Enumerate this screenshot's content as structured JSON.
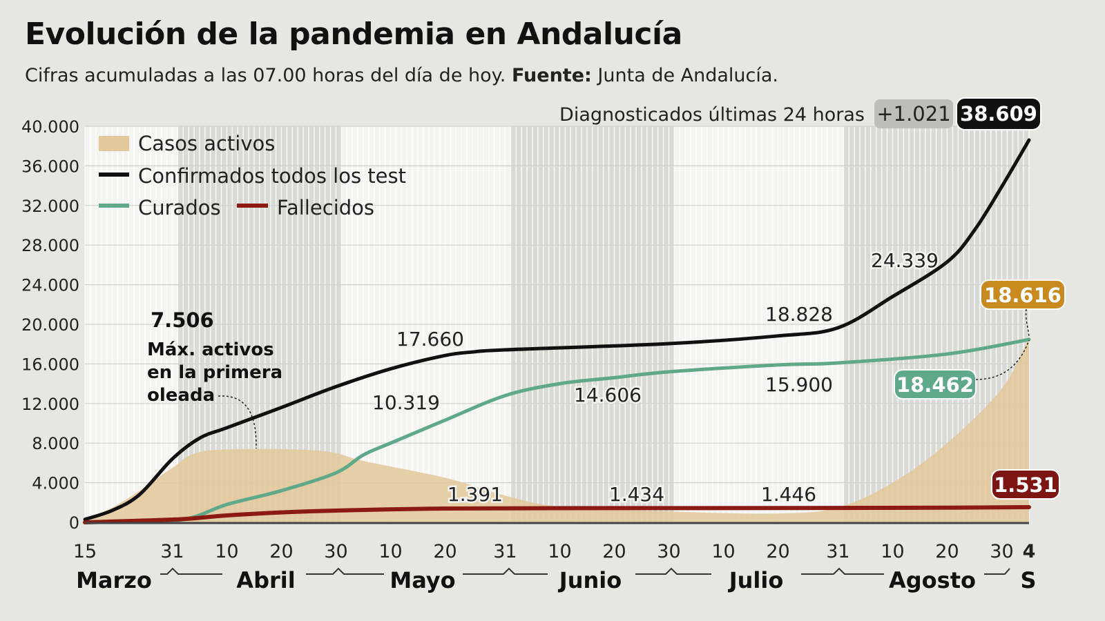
{
  "chart_data": {
    "type": "line",
    "title": "Evolución de la pandemia en Andalucía",
    "subtitle": "Cifras acumuladas a las 07.00 horas del día de hoy.",
    "source_label": "Fuente:",
    "source": "Junta de Andalucía.",
    "ylim": [
      0,
      40000
    ],
    "yticks": [
      "0",
      "4.000",
      "8.000",
      "12.000",
      "16.000",
      "20.000",
      "24.000",
      "28.000",
      "32.000",
      "36.000",
      "40.000"
    ],
    "xrange": [
      "03-15",
      "09-04"
    ],
    "xticks": [
      {
        "d": "03-15",
        "l": "15"
      },
      {
        "d": "03-31",
        "l": "31"
      },
      {
        "d": "04-10",
        "l": "10"
      },
      {
        "d": "04-20",
        "l": "20"
      },
      {
        "d": "04-30",
        "l": "30"
      },
      {
        "d": "05-10",
        "l": "10"
      },
      {
        "d": "05-20",
        "l": "20"
      },
      {
        "d": "05-31",
        "l": "31"
      },
      {
        "d": "06-10",
        "l": "10"
      },
      {
        "d": "06-20",
        "l": "20"
      },
      {
        "d": "06-30",
        "l": "30"
      },
      {
        "d": "07-10",
        "l": "10"
      },
      {
        "d": "07-20",
        "l": "20"
      },
      {
        "d": "07-31",
        "l": "31"
      },
      {
        "d": "08-10",
        "l": "10"
      },
      {
        "d": "08-20",
        "l": "20"
      },
      {
        "d": "08-30",
        "l": "30"
      },
      {
        "d": "09-04",
        "l": "4"
      }
    ],
    "months": [
      "Marzo",
      "Abril",
      "Mayo",
      "Junio",
      "Julio",
      "Agosto",
      "S"
    ],
    "grid": true,
    "legend_placement": "top-left",
    "summary": {
      "label": "Diagnosticados últimas 24 horas",
      "delta": "+1.021",
      "total": "38.609"
    },
    "series": [
      {
        "name": "Casos activos",
        "type": "area",
        "color": "#e3c89a",
        "points": [
          [
            "03-15",
            300
          ],
          [
            "03-20",
            1500
          ],
          [
            "03-25",
            3200
          ],
          [
            "03-31",
            5500
          ],
          [
            "04-05",
            7100
          ],
          [
            "04-15",
            7400
          ],
          [
            "04-25",
            7300
          ],
          [
            "04-30",
            7000
          ],
          [
            "05-05",
            6200
          ],
          [
            "05-20",
            4500
          ],
          [
            "05-31",
            2700
          ],
          [
            "06-10",
            1600
          ],
          [
            "06-30",
            1100
          ],
          [
            "07-20",
            900
          ],
          [
            "07-31",
            1500
          ],
          [
            "08-10",
            4000
          ],
          [
            "08-20",
            8000
          ],
          [
            "08-30",
            13500
          ],
          [
            "09-04",
            18616
          ]
        ]
      },
      {
        "name": "Confirmados todos los test",
        "type": "line",
        "color": "#111111",
        "points": [
          [
            "03-15",
            300
          ],
          [
            "03-20",
            1200
          ],
          [
            "03-25",
            2800
          ],
          [
            "03-31",
            6400
          ],
          [
            "04-05",
            8500
          ],
          [
            "04-10",
            9550
          ],
          [
            "04-20",
            11600
          ],
          [
            "04-30",
            13700
          ],
          [
            "05-10",
            15500
          ],
          [
            "05-20",
            16850
          ],
          [
            "05-25",
            17200
          ],
          [
            "05-31",
            17420
          ],
          [
            "06-30",
            18050
          ],
          [
            "07-20",
            18828
          ],
          [
            "07-31",
            19650
          ],
          [
            "08-10",
            22800
          ],
          [
            "08-20",
            26300
          ],
          [
            "08-25",
            29500
          ],
          [
            "08-30",
            33900
          ],
          [
            "09-04",
            38609
          ]
        ]
      },
      {
        "name": "Curados",
        "type": "line",
        "color": "#5fa88a",
        "points": [
          [
            "03-15",
            0
          ],
          [
            "04-01",
            200
          ],
          [
            "04-10",
            1800
          ],
          [
            "04-20",
            3200
          ],
          [
            "04-30",
            5000
          ],
          [
            "05-05",
            6800
          ],
          [
            "05-10",
            8000
          ],
          [
            "05-20",
            10319
          ],
          [
            "05-31",
            12800
          ],
          [
            "06-10",
            14000
          ],
          [
            "06-20",
            14606
          ],
          [
            "06-30",
            15200
          ],
          [
            "07-20",
            15900
          ],
          [
            "07-31",
            16100
          ],
          [
            "08-20",
            17000
          ],
          [
            "09-04",
            18462
          ]
        ]
      },
      {
        "name": "Fallecidos",
        "type": "line",
        "color": "#8b1a12",
        "points": [
          [
            "03-15",
            0
          ],
          [
            "04-01",
            300
          ],
          [
            "04-10",
            700
          ],
          [
            "04-20",
            1000
          ],
          [
            "05-01",
            1200
          ],
          [
            "05-20",
            1391
          ],
          [
            "06-20",
            1434
          ],
          [
            "07-20",
            1446
          ],
          [
            "08-20",
            1480
          ],
          [
            "09-04",
            1531
          ]
        ]
      }
    ],
    "annotations": {
      "max_value": "7.506",
      "max_text": [
        "Máx. activos",
        "en la primera",
        "oleada"
      ],
      "labels": [
        "17.660",
        "10.319",
        "14.606",
        "15.900",
        "18.828",
        "24.339",
        "1.391",
        "1.434",
        "1.446"
      ],
      "end_activos": "18.616",
      "end_curados": "18.462",
      "end_fallecidos": "1.531"
    }
  }
}
